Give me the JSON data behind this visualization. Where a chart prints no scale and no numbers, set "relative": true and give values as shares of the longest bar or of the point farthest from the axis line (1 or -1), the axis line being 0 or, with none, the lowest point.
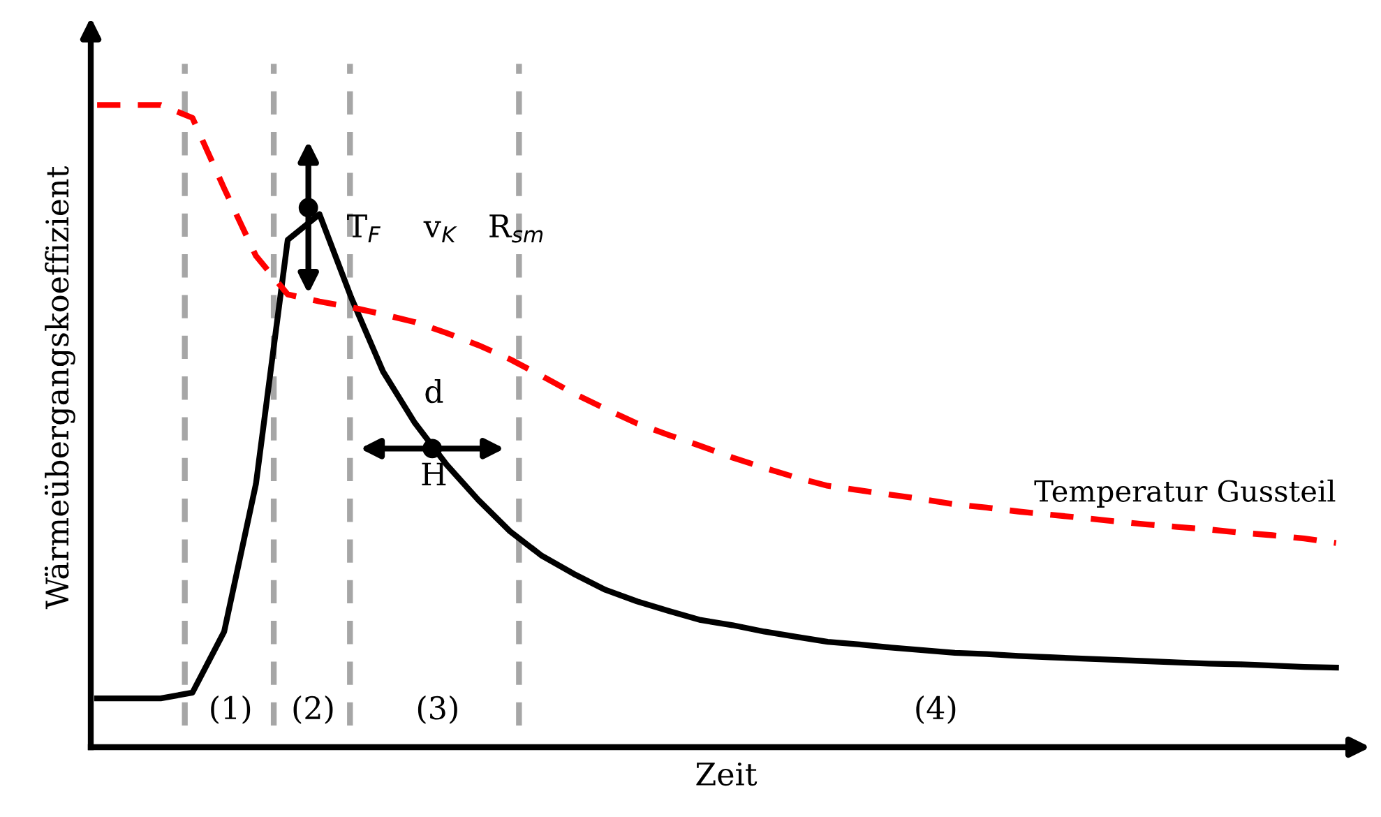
{
  "chart_data": {
    "type": "line",
    "relative": true,
    "xlabel": "Zeit",
    "ylabel": "Wärmeübergangskoeffizient",
    "marker": "none",
    "categories": [
      null,
      null,
      null,
      null,
      null,
      null,
      null,
      null,
      null,
      null,
      null,
      null,
      null,
      null,
      null,
      null,
      null,
      null,
      null,
      null,
      null,
      null,
      null,
      null,
      null,
      null,
      null,
      null,
      null,
      null,
      null,
      null,
      null,
      null,
      null,
      null,
      null,
      null,
      null,
      null
    ],
    "series": [
      {
        "color": "#000000",
        "line_style": "solid",
        "values": [
          0.076,
          0.076,
          0.076,
          0.085,
          0.18,
          0.41,
          0.79,
          0.83,
          0.7,
          0.585,
          0.505,
          0.44,
          0.385,
          0.336,
          0.298,
          0.27,
          0.245,
          0.227,
          0.212,
          0.198,
          0.19,
          0.18,
          0.172,
          0.164,
          0.16,
          0.155,
          0.151,
          0.147,
          0.145,
          0.142,
          0.14,
          0.138,
          0.136,
          0.134,
          0.132,
          0.13,
          0.129,
          0.127,
          0.125,
          0.124
        ]
      },
      {
        "name": "Temperatur Gussteil",
        "color": "#ff0000",
        "line_style": "dashed",
        "values": [
          1.0,
          1.0,
          1.0,
          0.98,
          0.87,
          0.765,
          0.705,
          0.694,
          0.685,
          0.674,
          0.662,
          0.645,
          0.626,
          0.604,
          0.578,
          0.551,
          0.527,
          0.504,
          0.486,
          0.469,
          0.451,
          0.435,
          0.42,
          0.407,
          0.4,
          0.393,
          0.386,
          0.378,
          0.373,
          0.367,
          0.362,
          0.357,
          0.352,
          0.347,
          0.343,
          0.339,
          0.334,
          0.33,
          0.325,
          0.318
        ]
      }
    ],
    "annotations": [
      "(1)",
      "(2)",
      "(3)",
      "(4)",
      "T$_{F}$",
      "v$_{K}$",
      "R$_{sm}$",
      "d",
      "H"
    ]
  }
}
